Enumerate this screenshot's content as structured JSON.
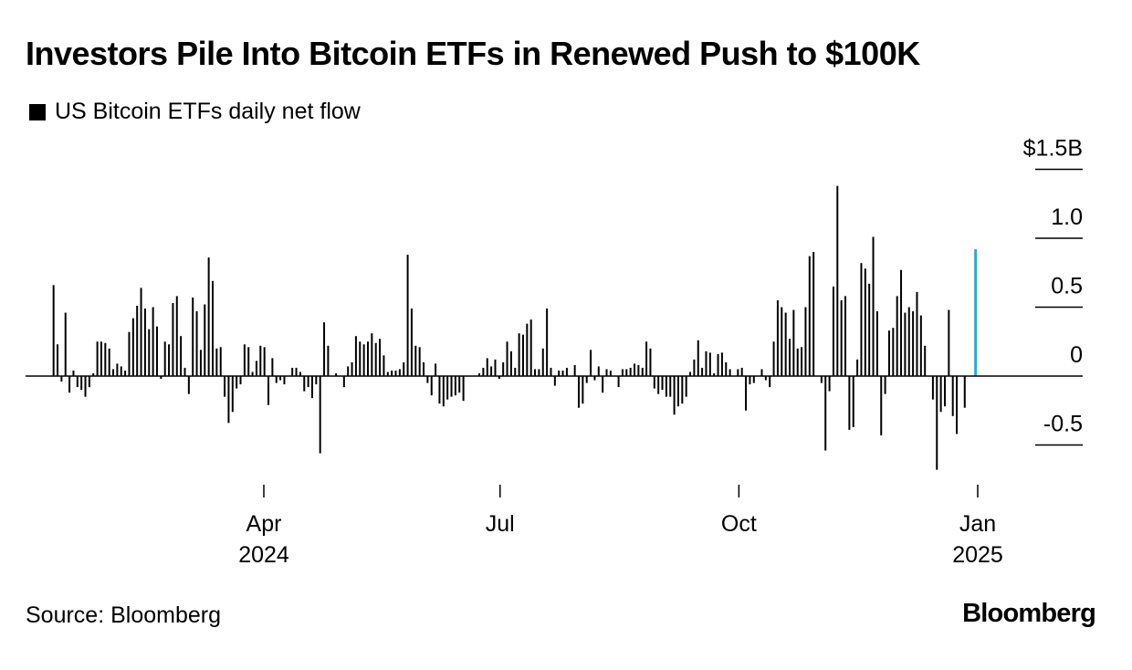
{
  "title": "Investors Pile Into Bitcoin ETFs in Renewed Push to $100K",
  "legend_label": "US Bitcoin ETFs daily net flow",
  "source": "Source: Bloomberg",
  "logo": "Bloomberg",
  "colors": {
    "bars": "#000000",
    "highlight": "#29a8e0",
    "axis": "#000000"
  },
  "chart_data": {
    "type": "bar",
    "title": "Investors Pile Into Bitcoin ETFs in Renewed Push to $100K",
    "series": [
      {
        "name": "US Bitcoin ETFs daily net flow",
        "unit": "$B",
        "x_start": "2024-01-11",
        "x_end": "2024-12-27",
        "values": [
          0.66,
          0.23,
          -0.04,
          0.46,
          -0.12,
          0.04,
          -0.08,
          -0.1,
          -0.15,
          -0.08,
          0.02,
          0.25,
          0.25,
          0.24,
          0.2,
          0.05,
          0.09,
          0.07,
          0.04,
          0.32,
          0.42,
          0.51,
          0.64,
          0.49,
          0.34,
          0.5,
          0.36,
          -0.02,
          0.25,
          0.23,
          0.53,
          0.58,
          0.29,
          0.06,
          -0.13,
          0.57,
          0.47,
          0.19,
          0.52,
          0.86,
          0.69,
          0.2,
          0.21,
          -0.15,
          -0.34,
          -0.26,
          -0.09,
          -0.06,
          0.23,
          0.21,
          0.03,
          0.11,
          0.22,
          0.21,
          -0.21,
          0.13,
          -0.05,
          -0.03,
          -0.06,
          0.0,
          0.06,
          0.06,
          0.03,
          -0.11,
          -0.08,
          -0.16,
          -0.06,
          -0.56,
          0.39,
          0.22,
          0.0,
          0.02,
          0.0,
          -0.08,
          0.07,
          0.1,
          0.29,
          0.25,
          0.23,
          0.25,
          0.31,
          0.24,
          0.27,
          0.15,
          0.03,
          0.04,
          0.04,
          0.05,
          0.1,
          0.88,
          0.49,
          0.22,
          0.21,
          0.1,
          -0.05,
          -0.14,
          0.09,
          -0.2,
          -0.22,
          -0.17,
          -0.15,
          -0.14,
          -0.12,
          -0.18,
          0.0,
          0.0,
          0.0,
          0.02,
          0.06,
          0.13,
          0.07,
          0.12,
          -0.02,
          0.1,
          0.25,
          0.18,
          0.06,
          0.31,
          0.3,
          0.38,
          0.41,
          0.05,
          0.05,
          0.2,
          0.49,
          0.06,
          -0.07,
          0.04,
          0.04,
          0.06,
          0.0,
          0.08,
          -0.23,
          -0.2,
          -0.05,
          0.19,
          -0.03,
          0.07,
          -0.12,
          0.05,
          0.04,
          0.0,
          -0.08,
          0.05,
          0.05,
          0.06,
          0.09,
          0.08,
          0.06,
          0.25,
          0.2,
          -0.09,
          -0.13,
          -0.1,
          -0.15,
          -0.15,
          -0.28,
          -0.22,
          -0.2,
          -0.15,
          0.03,
          0.12,
          0.26,
          0.06,
          0.18,
          0.17,
          0.02,
          0.16,
          0.17,
          0.1,
          0.05,
          0.0,
          0.05,
          0.06,
          -0.25,
          -0.06,
          -0.05,
          0.0,
          0.05,
          -0.03,
          -0.08,
          0.25,
          0.55,
          0.5,
          0.46,
          0.27,
          0.48,
          0.2,
          0.21,
          0.5,
          0.87,
          0.9,
          0.0,
          -0.05,
          -0.54,
          -0.11,
          0.65,
          1.38,
          0.55,
          0.58,
          -0.39,
          -0.37,
          0.12,
          0.82,
          0.78,
          0.67,
          1.01,
          0.47,
          -0.43,
          -0.13,
          0.33,
          0.35,
          0.58,
          0.77,
          0.46,
          0.5,
          0.47,
          0.61,
          0.44,
          0.22,
          0.0,
          -0.17,
          -0.68,
          -0.26,
          -0.22,
          0.48,
          -0.29,
          -0.42,
          0.0,
          -0.23
        ]
      }
    ],
    "last_value": 0.92,
    "last_date": "2024-12-31",
    "ylim": [
      -0.6,
      1.5
    ],
    "y_ticks": [
      {
        "value": 1.5,
        "label": "$1.5B"
      },
      {
        "value": 1.0,
        "label": "1.0"
      },
      {
        "value": 0.5,
        "label": "0.5"
      },
      {
        "value": 0.0,
        "label": "0"
      },
      {
        "value": -0.5,
        "label": "-0.5"
      }
    ],
    "x_ticks": [
      {
        "date": "2024-04-01",
        "label": "Apr",
        "sublabel": "2024"
      },
      {
        "date": "2024-07-01",
        "label": "Jul",
        "sublabel": ""
      },
      {
        "date": "2024-10-01",
        "label": "Oct",
        "sublabel": ""
      },
      {
        "date": "2025-01-01",
        "label": "Jan",
        "sublabel": "2025"
      }
    ],
    "grid": false,
    "legend_position": "top-left"
  }
}
